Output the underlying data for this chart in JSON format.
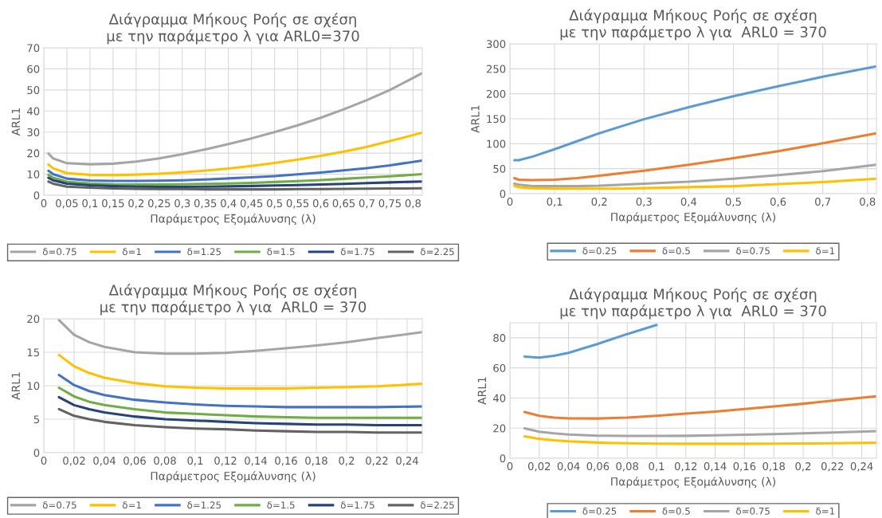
{
  "chart_data": [
    {
      "type": "line",
      "title": "Διάγραμμα Μήκους Ροής σε σχέση\nμε την παράμετρο λ για ARL0=370",
      "xlabel": "Παράμετρος Εξομάλυνσης (λ)",
      "ylabel": "ARL1",
      "grid": true,
      "legend": "bottom",
      "x": [
        0.01,
        0.02,
        0.05,
        0.1,
        0.15,
        0.2,
        0.25,
        0.3,
        0.35,
        0.4,
        0.45,
        0.5,
        0.55,
        0.6,
        0.65,
        0.7,
        0.75,
        0.82
      ],
      "xlim": [
        0,
        0.82
      ],
      "xticks": [
        0,
        {
          "value": 0.05,
          "label": "0,05"
        },
        {
          "value": 0.1,
          "label": "0,1"
        },
        {
          "value": 0.15,
          "label": "0,15"
        },
        {
          "value": 0.2,
          "label": "0,2"
        },
        {
          "value": 0.25,
          "label": "0,25"
        },
        {
          "value": 0.3,
          "label": "0,3"
        },
        {
          "value": 0.35,
          "label": "0,35"
        },
        {
          "value": 0.4,
          "label": "0,4"
        },
        {
          "value": 0.45,
          "label": "0,45"
        },
        {
          "value": 0.5,
          "label": "0,5"
        },
        {
          "value": 0.55,
          "label": "0,55"
        },
        {
          "value": 0.6,
          "label": "0,6"
        },
        {
          "value": 0.65,
          "label": "0,65"
        },
        {
          "value": 0.7,
          "label": "0,7"
        },
        {
          "value": 0.75,
          "label": "0,75"
        },
        {
          "value": 0.8,
          "label": "0,8"
        }
      ],
      "ylim": [
        0,
        70
      ],
      "yticks": [
        0,
        10,
        20,
        30,
        40,
        50,
        60,
        70
      ],
      "series": [
        {
          "name": "δ=0.75",
          "color": "#a5a5a5",
          "values": [
            19.8,
            17.5,
            15.2,
            14.7,
            15,
            16,
            17.5,
            19.5,
            21.8,
            24.3,
            27,
            30,
            33.2,
            36.8,
            40.8,
            45.2,
            50,
            58
          ]
        },
        {
          "name": "δ=1",
          "color": "#ffc000",
          "values": [
            14.6,
            12.8,
            10.5,
            9.7,
            9.6,
            9.8,
            10.2,
            10.9,
            11.7,
            12.7,
            13.9,
            15.3,
            16.9,
            18.7,
            20.7,
            23,
            25.7,
            29.7
          ]
        },
        {
          "name": "δ=1.25",
          "color": "#4472c4",
          "values": [
            11.6,
            10,
            7.9,
            7,
            6.8,
            6.8,
            6.9,
            7.1,
            7.5,
            8,
            8.5,
            9.1,
            9.9,
            10.8,
            11.8,
            12.9,
            14.2,
            16.5
          ]
        },
        {
          "name": "δ=1.5",
          "color": "#70ad47",
          "values": [
            9.7,
            8.3,
            6.4,
            5.6,
            5.2,
            5.1,
            5.1,
            5.2,
            5.4,
            5.6,
            5.9,
            6.3,
            6.7,
            7.2,
            7.8,
            8.4,
            9,
            10
          ]
        },
        {
          "name": "δ=1.75",
          "color": "#264478",
          "values": [
            8.3,
            7.1,
            5.5,
            4.7,
            4.3,
            4.1,
            4,
            4,
            4.1,
            4.2,
            4.4,
            4.6,
            4.8,
            5.1,
            5.4,
            5.8,
            6.1,
            6.5
          ]
        },
        {
          "name": "δ=2.25",
          "color": "#636363",
          "values": [
            6.5,
            5.5,
            4.1,
            3.6,
            3.2,
            3,
            2.9,
            2.9,
            2.8,
            2.8,
            2.8,
            2.8,
            2.9,
            2.9,
            3,
            3.1,
            3.2,
            3.3
          ]
        }
      ]
    },
    {
      "type": "line",
      "title": "Διάγραμμα Μήκους Ροής σε σχέση\nμε την παράμετρο λ για  ARL0 = 370",
      "xlabel": "Παράμετρος Εξομάλυνσης (λ)",
      "ylabel": "ARL1",
      "grid": true,
      "legend": "bottom",
      "x": [
        0.01,
        0.02,
        0.05,
        0.1,
        0.15,
        0.2,
        0.25,
        0.3,
        0.4,
        0.5,
        0.6,
        0.7,
        0.82
      ],
      "xlim": [
        0,
        0.82
      ],
      "xticks": [
        0,
        {
          "value": 0.1,
          "label": "0,1"
        },
        {
          "value": 0.2,
          "label": "0,2"
        },
        {
          "value": 0.3,
          "label": "0,3"
        },
        {
          "value": 0.4,
          "label": "0,4"
        },
        {
          "value": 0.5,
          "label": "0,5"
        },
        {
          "value": 0.6,
          "label": "0,6"
        },
        {
          "value": 0.7,
          "label": "0,7"
        },
        {
          "value": 0.8,
          "label": "0,8"
        }
      ],
      "ylim": [
        0,
        300
      ],
      "yticks": [
        0,
        50,
        100,
        150,
        200,
        250,
        300
      ],
      "series": [
        {
          "name": "δ=0.25",
          "color": "#5b9bd5",
          "values": [
            67,
            67,
            74,
            89,
            105,
            121,
            135,
            149,
            173,
            195,
            215,
            234,
            255
          ]
        },
        {
          "name": "δ=0.5",
          "color": "#ed7d31",
          "values": [
            31,
            28,
            27,
            28,
            31,
            36,
            41,
            46,
            58,
            71,
            85,
            101,
            121
          ]
        },
        {
          "name": "δ=0.75",
          "color": "#a5a5a5",
          "values": [
            20,
            18,
            15,
            15,
            15,
            16,
            18,
            20,
            24,
            30,
            37,
            45,
            58
          ]
        },
        {
          "name": "δ=1",
          "color": "#ffc000",
          "values": [
            15,
            13,
            11,
            10,
            10,
            10,
            10,
            11,
            13,
            15,
            19,
            23,
            30
          ]
        }
      ]
    },
    {
      "type": "line",
      "title": "Διάγραμμα Μήκους Ροής σε σχέση\nμε την παράμετρο λ για  ARL0 = 370",
      "xlabel": "Παράμετρος Εξομάλυνσης (λ)",
      "ylabel": "ARL1",
      "grid": true,
      "legend": "bottom",
      "x": [
        0.01,
        0.02,
        0.03,
        0.04,
        0.06,
        0.08,
        0.1,
        0.12,
        0.14,
        0.16,
        0.18,
        0.2,
        0.22,
        0.25
      ],
      "xlim": [
        0,
        0.25
      ],
      "xticks": [
        0,
        {
          "value": 0.02,
          "label": "0,02"
        },
        {
          "value": 0.04,
          "label": "0,04"
        },
        {
          "value": 0.06,
          "label": "0,06"
        },
        {
          "value": 0.08,
          "label": "0,08"
        },
        {
          "value": 0.1,
          "label": "0,1"
        },
        {
          "value": 0.12,
          "label": "0,12"
        },
        {
          "value": 0.14,
          "label": "0,14"
        },
        {
          "value": 0.16,
          "label": "0,16"
        },
        {
          "value": 0.18,
          "label": "0,18"
        },
        {
          "value": 0.2,
          "label": "0,2"
        },
        {
          "value": 0.22,
          "label": "0,22"
        },
        {
          "value": 0.24,
          "label": "0,24"
        }
      ],
      "ylim": [
        0,
        20
      ],
      "yticks": [
        0,
        5,
        10,
        15,
        20
      ],
      "series": [
        {
          "name": "δ=0.75",
          "color": "#a5a5a5",
          "values": [
            19.8,
            17.6,
            16.5,
            15.8,
            15,
            14.8,
            14.8,
            14.9,
            15.2,
            15.6,
            16,
            16.5,
            17.1,
            18
          ]
        },
        {
          "name": "δ=1",
          "color": "#ffc000",
          "values": [
            14.6,
            12.9,
            11.9,
            11.2,
            10.4,
            9.9,
            9.7,
            9.6,
            9.6,
            9.6,
            9.7,
            9.8,
            9.9,
            10.3
          ]
        },
        {
          "name": "δ=1.25",
          "color": "#4472c4",
          "values": [
            11.6,
            10.1,
            9.2,
            8.6,
            7.9,
            7.5,
            7.2,
            7,
            6.9,
            6.8,
            6.8,
            6.8,
            6.8,
            6.9
          ]
        },
        {
          "name": "δ=1.5",
          "color": "#70ad47",
          "values": [
            9.7,
            8.4,
            7.6,
            7.1,
            6.5,
            6,
            5.8,
            5.6,
            5.4,
            5.3,
            5.2,
            5.2,
            5.2,
            5.2
          ]
        },
        {
          "name": "δ=1.75",
          "color": "#264478",
          "values": [
            8.3,
            7.1,
            6.5,
            6,
            5.4,
            5,
            4.8,
            4.6,
            4.4,
            4.3,
            4.2,
            4.2,
            4.1,
            4.1
          ]
        },
        {
          "name": "δ=2.25",
          "color": "#636363",
          "values": [
            6.5,
            5.5,
            5,
            4.6,
            4.1,
            3.8,
            3.6,
            3.5,
            3.3,
            3.2,
            3.1,
            3.1,
            3,
            3
          ]
        }
      ]
    },
    {
      "type": "line",
      "title": "Διάγραμμα Μήκους Ροής σε σχέση\nμε την παράμετρο λ για  ARL0 = 370",
      "xlabel": "Παράμετρος Εξομάλυνσης (λ)",
      "ylabel": "ARL1",
      "grid": true,
      "legend": "bottom",
      "x": [
        0.01,
        0.02,
        0.03,
        0.04,
        0.06,
        0.08,
        0.1,
        0.12,
        0.14,
        0.16,
        0.18,
        0.2,
        0.22,
        0.25
      ],
      "xlim": [
        0,
        0.25
      ],
      "xticks": [
        0,
        {
          "value": 0.02,
          "label": "0,02"
        },
        {
          "value": 0.04,
          "label": "0,04"
        },
        {
          "value": 0.06,
          "label": "0,06"
        },
        {
          "value": 0.08,
          "label": "0,08"
        },
        {
          "value": 0.1,
          "label": "0,1"
        },
        {
          "value": 0.12,
          "label": "0,12"
        },
        {
          "value": 0.14,
          "label": "0,14"
        },
        {
          "value": 0.16,
          "label": "0,16"
        },
        {
          "value": 0.18,
          "label": "0,18"
        },
        {
          "value": 0.2,
          "label": "0,2"
        },
        {
          "value": 0.22,
          "label": "0,22"
        },
        {
          "value": 0.24,
          "label": "0,24"
        }
      ],
      "ylim": [
        0,
        90
      ],
      "yticks": [
        0,
        20,
        40,
        60,
        80
      ],
      "series": [
        {
          "name": "δ=0.25",
          "color": "#5b9bd5",
          "values": [
            67.5,
            66.8,
            68,
            70,
            76,
            82.5,
            88.5,
            null,
            null,
            null,
            null,
            null,
            null,
            null
          ]
        },
        {
          "name": "δ=0.5",
          "color": "#ed7d31",
          "values": [
            30.7,
            28.2,
            27,
            26.5,
            26.4,
            27,
            28.2,
            29.6,
            31,
            32.7,
            34.4,
            36.2,
            38.2,
            41.2
          ]
        },
        {
          "name": "δ=0.75",
          "color": "#a5a5a5",
          "values": [
            19.8,
            17.6,
            16.5,
            15.8,
            15,
            14.8,
            14.8,
            14.9,
            15.2,
            15.6,
            16,
            16.5,
            17.1,
            18
          ]
        },
        {
          "name": "δ=1",
          "color": "#ffc000",
          "values": [
            14.6,
            12.9,
            11.9,
            11.2,
            10.4,
            9.9,
            9.7,
            9.6,
            9.6,
            9.6,
            9.7,
            9.8,
            9.9,
            10.3
          ]
        }
      ]
    }
  ]
}
